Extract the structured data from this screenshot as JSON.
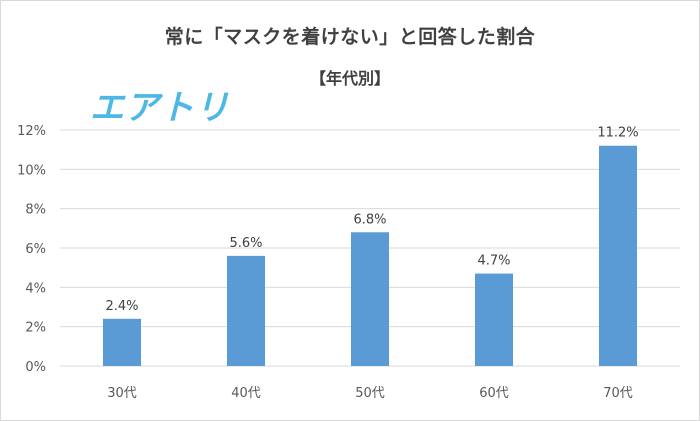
{
  "chart_data": {
    "type": "bar",
    "title": "常に「マスクを着けない」と回答した割合",
    "subtitle": "【年代別】",
    "categories": [
      "30代",
      "40代",
      "50代",
      "60代",
      "70代"
    ],
    "values": [
      2.4,
      5.6,
      6.8,
      4.7,
      11.2
    ],
    "data_labels": [
      "2.4%",
      "5.6%",
      "6.8%",
      "4.7%",
      "11.2%"
    ],
    "y_ticks": [
      "0%",
      "2%",
      "4%",
      "6%",
      "8%",
      "10%",
      "12%"
    ],
    "ylim": [
      0,
      12
    ],
    "grid": true,
    "bar_color": "#5b9bd5",
    "grid_color": "#d9d9d9",
    "xlabel": "",
    "ylabel": ""
  },
  "logo": {
    "text": "エアトリ",
    "color": "#4db7e6"
  }
}
